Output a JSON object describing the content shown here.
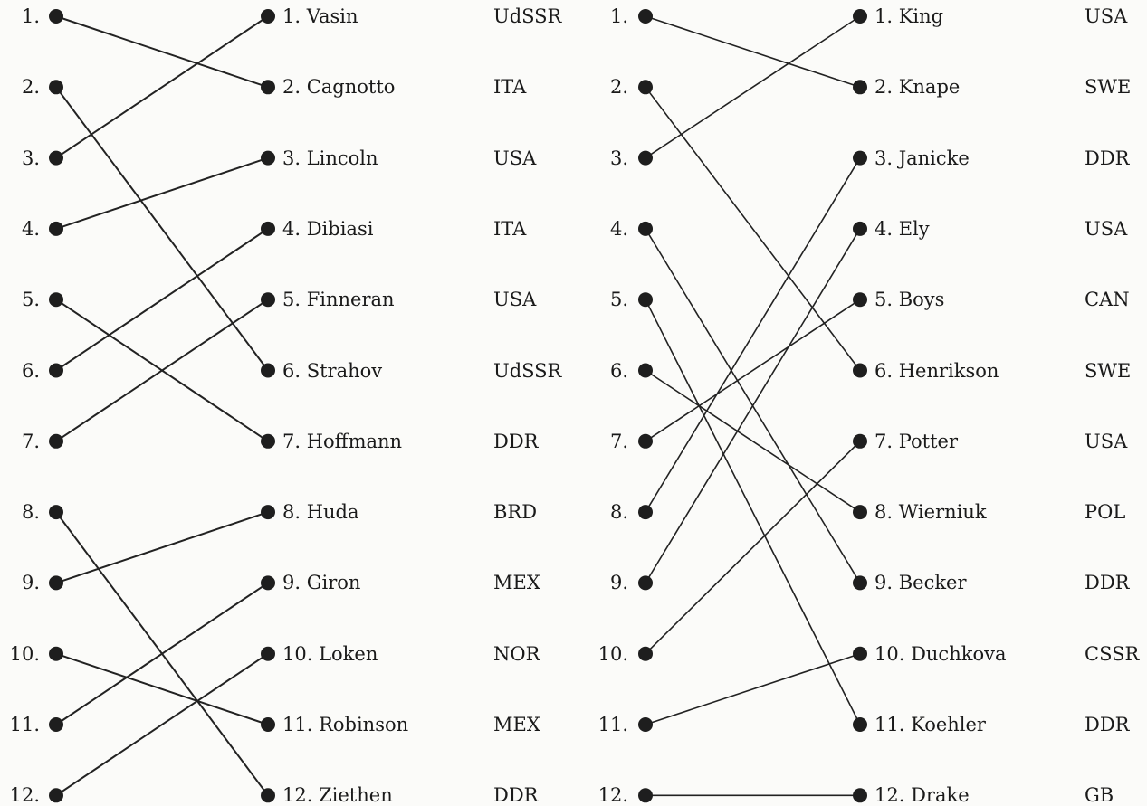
{
  "panels": [
    {
      "left_labels": [
        "1.",
        "2.",
        "3.",
        "4.",
        "5.",
        "6.",
        "7.",
        "8.",
        "9.",
        "10.",
        "11.",
        "12."
      ],
      "results": [
        {
          "label": "1. Vasin",
          "country": "UdSSR"
        },
        {
          "label": "2. Cagnotto",
          "country": "ITA"
        },
        {
          "label": "3. Lincoln",
          "country": "USA"
        },
        {
          "label": "4. Dibiasi",
          "country": "ITA"
        },
        {
          "label": "5. Finneran",
          "country": "USA"
        },
        {
          "label": "6. Strahov",
          "country": "UdSSR"
        },
        {
          "label": "7. Hoffmann",
          "country": "DDR"
        },
        {
          "label": "8. Huda",
          "country": "BRD"
        },
        {
          "label": "9. Giron",
          "country": "MEX"
        },
        {
          "label": "10. Loken",
          "country": "NOR"
        },
        {
          "label": "11. Robinson",
          "country": "MEX"
        },
        {
          "label": "12. Ziethen",
          "country": "DDR"
        }
      ],
      "connections": [
        [
          1,
          2
        ],
        [
          2,
          6
        ],
        [
          3,
          1
        ],
        [
          4,
          3
        ],
        [
          5,
          7
        ],
        [
          6,
          4
        ],
        [
          7,
          5
        ],
        [
          8,
          12
        ],
        [
          9,
          8
        ],
        [
          10,
          11
        ],
        [
          11,
          9
        ],
        [
          12,
          10
        ]
      ]
    },
    {
      "left_labels": [
        "1.",
        "2.",
        "3.",
        "4.",
        "5.",
        "6.",
        "7.",
        "8.",
        "9.",
        "10.",
        "11.",
        "12."
      ],
      "results": [
        {
          "label": "1. King",
          "country": "USA"
        },
        {
          "label": "2. Knape",
          "country": "SWE"
        },
        {
          "label": "3. Janicke",
          "country": "DDR"
        },
        {
          "label": "4. Ely",
          "country": "USA"
        },
        {
          "label": "5. Boys",
          "country": "CAN"
        },
        {
          "label": "6. Henrikson",
          "country": "SWE"
        },
        {
          "label": "7. Potter",
          "country": "USA"
        },
        {
          "label": "8. Wierniuk",
          "country": "POL"
        },
        {
          "label": "9. Becker",
          "country": "DDR"
        },
        {
          "label": "10. Duchkova",
          "country": "CSSR"
        },
        {
          "label": "11. Koehler",
          "country": "DDR"
        },
        {
          "label": "12. Drake",
          "country": "GB"
        }
      ],
      "connections": [
        [
          1,
          2
        ],
        [
          2,
          6
        ],
        [
          3,
          1
        ],
        [
          4,
          9
        ],
        [
          5,
          11
        ],
        [
          6,
          8
        ],
        [
          7,
          5
        ],
        [
          8,
          3
        ],
        [
          9,
          4
        ],
        [
          10,
          7
        ],
        [
          11,
          10
        ],
        [
          12,
          12
        ]
      ]
    }
  ]
}
